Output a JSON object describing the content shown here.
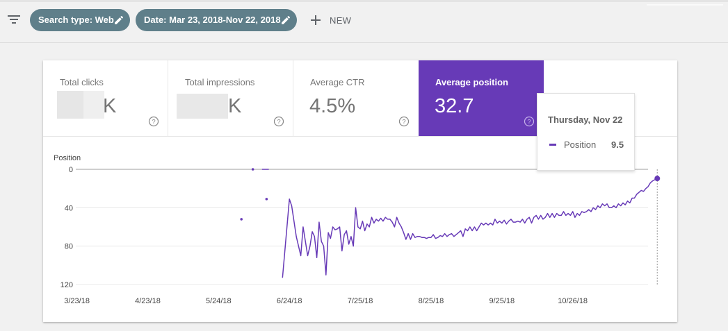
{
  "toolbar": {
    "filter_icon": "filter-list-icon",
    "chips": [
      {
        "label": "Search type: Web",
        "icon": "pencil-icon"
      },
      {
        "label": "Date: Mar 23, 2018-Nov 22, 2018",
        "icon": "pencil-icon"
      }
    ],
    "new_label": "NEW",
    "new_icon": "plus-icon"
  },
  "metrics": [
    {
      "label": "Total clicks",
      "value": "K",
      "active": false,
      "redacted": true
    },
    {
      "label": "Total impressions",
      "value": "K",
      "active": false,
      "redacted": true
    },
    {
      "label": "Average CTR",
      "value": "4.5%",
      "active": false,
      "redacted": false
    },
    {
      "label": "Average position",
      "value": "32.7",
      "active": true,
      "redacted": false
    }
  ],
  "colors": {
    "accent": "#673ab7",
    "chip": "#5f7f8a"
  },
  "tooltip": {
    "date": "Thursday, Nov 22",
    "series_name": "Position",
    "value": "9.5"
  },
  "chart_data": {
    "type": "line",
    "ylabel": "Position",
    "y_reversed": true,
    "ylim": [
      0,
      120
    ],
    "y_ticks": [
      "0",
      "40",
      "80",
      "120"
    ],
    "x_tick_labels": [
      "3/23/18",
      "4/23/18",
      "5/24/18",
      "6/24/18",
      "7/25/18",
      "8/25/18",
      "9/25/18",
      "10/26/18"
    ],
    "x_tick_days": [
      0,
      31,
      62,
      93,
      124,
      155,
      186,
      217
    ],
    "grid": true,
    "series": [
      {
        "name": "Position",
        "color": "#673ab7",
        "isolated_points": [
          [
            77,
            0
          ],
          [
            72,
            52
          ],
          [
            83,
            31
          ]
        ],
        "short_segments": [
          [
            [
              81,
              0
            ],
            [
              84,
              0
            ]
          ]
        ],
        "line_points": [
          [
            90,
            113
          ],
          [
            93,
            31
          ],
          [
            94,
            38
          ],
          [
            96,
            70
          ],
          [
            98,
            90
          ],
          [
            99,
            60
          ],
          [
            100,
            75
          ],
          [
            101,
            90
          ],
          [
            102,
            80
          ],
          [
            103,
            65
          ],
          [
            104,
            70
          ],
          [
            105,
            92
          ],
          [
            106,
            55
          ],
          [
            107,
            75
          ],
          [
            108,
            80
          ],
          [
            109,
            110
          ],
          [
            110,
            66
          ],
          [
            111,
            72
          ],
          [
            112,
            60
          ],
          [
            113,
            63
          ],
          [
            114,
            62
          ],
          [
            115,
            60
          ],
          [
            116,
            85
          ],
          [
            117,
            68
          ],
          [
            118,
            64
          ],
          [
            119,
            78
          ],
          [
            120,
            70
          ],
          [
            121,
            80
          ],
          [
            122,
            40
          ],
          [
            123,
            60
          ],
          [
            124,
            62
          ],
          [
            125,
            54
          ],
          [
            126,
            64
          ],
          [
            127,
            57
          ],
          [
            128,
            60
          ],
          [
            129,
            50
          ],
          [
            130,
            56
          ],
          [
            131,
            52
          ],
          [
            132,
            54
          ],
          [
            133,
            51
          ],
          [
            134,
            54
          ],
          [
            135,
            50
          ],
          [
            136,
            52
          ],
          [
            137,
            52
          ],
          [
            138,
            55
          ],
          [
            139,
            60
          ],
          [
            140,
            50
          ],
          [
            141,
            56
          ],
          [
            142,
            60
          ],
          [
            143,
            66
          ],
          [
            144,
            73
          ],
          [
            145,
            67
          ],
          [
            146,
            73
          ],
          [
            147,
            67
          ],
          [
            148,
            71
          ],
          [
            149,
            70
          ],
          [
            150,
            70
          ],
          [
            151,
            71
          ],
          [
            152,
            71
          ],
          [
            153,
            72
          ],
          [
            154,
            71
          ],
          [
            155,
            71
          ],
          [
            156,
            68
          ],
          [
            157,
            72
          ],
          [
            158,
            71
          ],
          [
            159,
            69
          ],
          [
            160,
            70
          ],
          [
            161,
            67
          ],
          [
            162,
            70
          ],
          [
            163,
            68
          ],
          [
            164,
            67
          ],
          [
            165,
            70
          ],
          [
            166,
            68
          ],
          [
            167,
            66
          ],
          [
            168,
            64
          ],
          [
            169,
            70
          ],
          [
            170,
            62
          ],
          [
            171,
            64
          ],
          [
            172,
            60
          ],
          [
            173,
            64
          ],
          [
            174,
            60
          ],
          [
            175,
            64
          ],
          [
            176,
            60
          ],
          [
            177,
            56
          ],
          [
            178,
            58
          ],
          [
            179,
            56
          ],
          [
            180,
            58
          ],
          [
            181,
            56
          ],
          [
            182,
            58
          ],
          [
            183,
            52
          ],
          [
            184,
            56
          ],
          [
            185,
            54
          ],
          [
            186,
            56
          ],
          [
            187,
            53
          ],
          [
            188,
            57
          ],
          [
            189,
            54
          ],
          [
            190,
            52
          ],
          [
            191,
            55
          ],
          [
            192,
            55
          ],
          [
            193,
            54
          ],
          [
            194,
            55
          ],
          [
            195,
            52
          ],
          [
            196,
            56
          ],
          [
            197,
            52
          ],
          [
            198,
            50
          ],
          [
            199,
            56
          ],
          [
            200,
            50
          ],
          [
            201,
            48
          ],
          [
            202,
            52
          ],
          [
            203,
            48
          ],
          [
            204,
            52
          ],
          [
            205,
            50
          ],
          [
            206,
            46
          ],
          [
            207,
            50
          ],
          [
            208,
            46
          ],
          [
            209,
            50
          ],
          [
            210,
            46
          ],
          [
            211,
            48
          ],
          [
            212,
            48
          ],
          [
            213,
            44
          ],
          [
            214,
            48
          ],
          [
            215,
            46
          ],
          [
            216,
            48
          ],
          [
            217,
            44
          ],
          [
            218,
            50
          ],
          [
            219,
            46
          ],
          [
            220,
            48
          ],
          [
            221,
            44
          ],
          [
            222,
            45
          ],
          [
            223,
            44
          ],
          [
            224,
            42
          ],
          [
            225,
            44
          ],
          [
            226,
            40
          ],
          [
            227,
            42
          ],
          [
            228,
            38
          ],
          [
            229,
            40
          ],
          [
            230,
            36
          ],
          [
            231,
            38
          ],
          [
            232,
            36
          ],
          [
            233,
            40
          ],
          [
            234,
            40
          ],
          [
            235,
            38
          ],
          [
            236,
            40
          ],
          [
            237,
            36
          ],
          [
            238,
            38
          ],
          [
            239,
            35
          ],
          [
            240,
            37
          ],
          [
            241,
            33
          ],
          [
            242,
            35
          ],
          [
            243,
            30
          ],
          [
            244,
            30
          ],
          [
            245,
            26
          ],
          [
            246,
            24
          ],
          [
            247,
            22
          ],
          [
            248,
            23
          ],
          [
            249,
            20
          ],
          [
            250,
            18
          ],
          [
            251,
            14
          ],
          [
            252,
            12
          ],
          [
            254,
            9.5
          ]
        ]
      }
    ],
    "highlight_point": [
      254,
      9.5
    ]
  }
}
